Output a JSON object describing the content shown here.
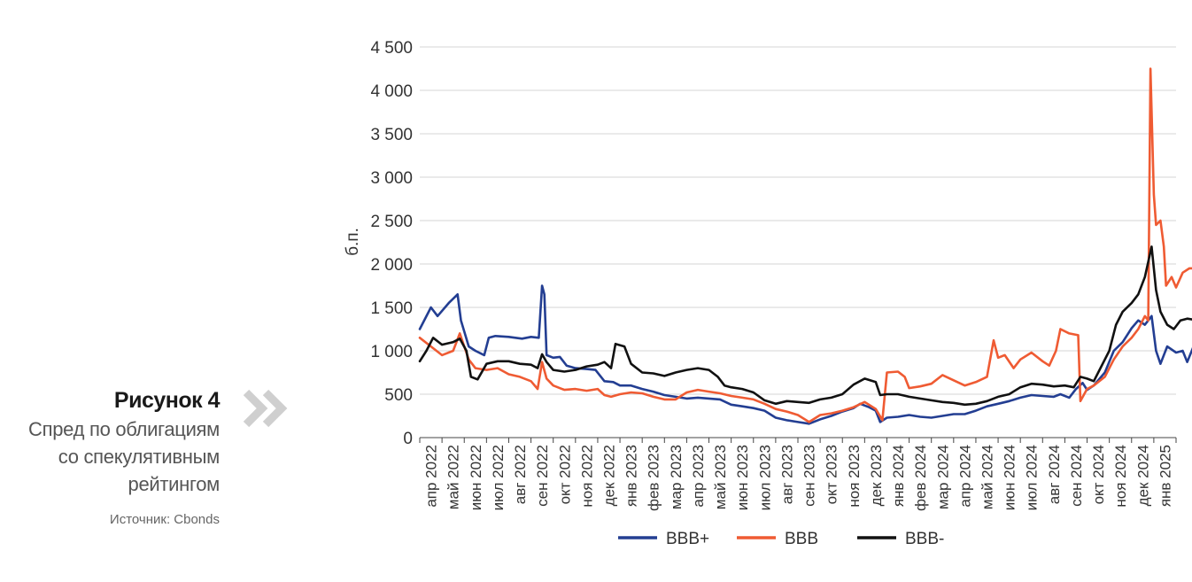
{
  "figure": {
    "number": "Рисунок 4",
    "title_lines": [
      "Спред по облигациям",
      "со спекулятивным",
      "рейтингом"
    ],
    "source": "Источник: Cbonds"
  },
  "chart_data": {
    "type": "line",
    "ylabel": "б.п.",
    "ylim": [
      0,
      4500
    ],
    "yticks": [
      0,
      500,
      1000,
      1500,
      2000,
      2500,
      3000,
      3500,
      4000,
      4500
    ],
    "ytick_labels": [
      "0",
      "500",
      "1 000",
      "1 500",
      "2 000",
      "2 500",
      "3 000",
      "3 500",
      "4 000",
      "4 500"
    ],
    "grid": "horizontal",
    "legend_position": "bottom",
    "categories": [
      "апр 2022",
      "май 2022",
      "июн 2022",
      "июл 2022",
      "авг 2022",
      "сен 2022",
      "окт 2022",
      "ноя 2022",
      "дек 2022",
      "янв 2023",
      "фев 2023",
      "мар 2023",
      "апр 2023",
      "май 2023",
      "июн 2023",
      "июл 2023",
      "авг 2023",
      "сен 2023",
      "окт 2023",
      "ноя 2023",
      "дек 2023",
      "янв 2024",
      "фев 2024",
      "мар 2024",
      "апр 2024",
      "май 2024",
      "июн 2024",
      "июл 2024",
      "авг 2024",
      "сен 2024",
      "окт 2024",
      "ноя 2024",
      "дек 2024",
      "янв 2025"
    ],
    "series": [
      {
        "name": "BBB+",
        "color": "#233e92",
        "points": [
          [
            0,
            1250
          ],
          [
            0.5,
            1500
          ],
          [
            0.8,
            1400
          ],
          [
            1.3,
            1550
          ],
          [
            1.7,
            1650
          ],
          [
            1.85,
            1350
          ],
          [
            2.2,
            1050
          ],
          [
            2.5,
            1000
          ],
          [
            2.9,
            950
          ],
          [
            3.1,
            1150
          ],
          [
            3.4,
            1170
          ],
          [
            4,
            1160
          ],
          [
            4.6,
            1140
          ],
          [
            5,
            1160
          ],
          [
            5.35,
            1150
          ],
          [
            5.5,
            1750
          ],
          [
            5.6,
            1650
          ],
          [
            5.7,
            950
          ],
          [
            6,
            920
          ],
          [
            6.3,
            930
          ],
          [
            6.6,
            830
          ],
          [
            7,
            800
          ],
          [
            7.5,
            790
          ],
          [
            7.9,
            780
          ],
          [
            8.3,
            650
          ],
          [
            8.7,
            640
          ],
          [
            9,
            600
          ],
          [
            9.5,
            600
          ],
          [
            10,
            560
          ],
          [
            10.5,
            530
          ],
          [
            11,
            490
          ],
          [
            11.5,
            470
          ],
          [
            12,
            450
          ],
          [
            12.5,
            460
          ],
          [
            13,
            450
          ],
          [
            13.5,
            440
          ],
          [
            14,
            380
          ],
          [
            14.5,
            360
          ],
          [
            15,
            340
          ],
          [
            15.5,
            310
          ],
          [
            16,
            230
          ],
          [
            16.5,
            200
          ],
          [
            17,
            180
          ],
          [
            17.5,
            160
          ],
          [
            18,
            210
          ],
          [
            18.5,
            250
          ],
          [
            19,
            300
          ],
          [
            19.5,
            340
          ],
          [
            19.8,
            390
          ],
          [
            20.2,
            350
          ],
          [
            20.5,
            310
          ],
          [
            20.7,
            180
          ],
          [
            21,
            230
          ],
          [
            21.5,
            240
          ],
          [
            22,
            260
          ],
          [
            22.5,
            240
          ],
          [
            23,
            230
          ],
          [
            23.5,
            250
          ],
          [
            24,
            270
          ],
          [
            24.5,
            270
          ],
          [
            25,
            310
          ],
          [
            25.5,
            360
          ],
          [
            26,
            390
          ],
          [
            26.5,
            420
          ],
          [
            27,
            460
          ],
          [
            27.5,
            490
          ],
          [
            28,
            480
          ],
          [
            28.5,
            470
          ],
          [
            28.8,
            500
          ],
          [
            29.2,
            460
          ],
          [
            29.5,
            560
          ],
          [
            29.8,
            630
          ],
          [
            30,
            550
          ],
          [
            30.3,
            600
          ],
          [
            30.8,
            750
          ],
          [
            31.2,
            1000
          ],
          [
            31.6,
            1100
          ],
          [
            32,
            1260
          ],
          [
            32.3,
            1350
          ],
          [
            32.6,
            1300
          ],
          [
            32.9,
            1400
          ],
          [
            33.1,
            1000
          ],
          [
            33.3,
            850
          ],
          [
            33.6,
            1050
          ],
          [
            34,
            980
          ],
          [
            34.3,
            1000
          ],
          [
            34.5,
            870
          ],
          [
            34.8,
            1060
          ],
          [
            35,
            1070
          ]
        ]
      },
      {
        "name": "BBB",
        "color": "#ef5b33",
        "points": [
          [
            0,
            1150
          ],
          [
            0.5,
            1050
          ],
          [
            1,
            950
          ],
          [
            1.5,
            1000
          ],
          [
            1.8,
            1200
          ],
          [
            2.2,
            900
          ],
          [
            2.5,
            800
          ],
          [
            3,
            780
          ],
          [
            3.5,
            800
          ],
          [
            4,
            730
          ],
          [
            4.5,
            700
          ],
          [
            5,
            650
          ],
          [
            5.3,
            560
          ],
          [
            5.5,
            870
          ],
          [
            5.7,
            680
          ],
          [
            6,
            600
          ],
          [
            6.5,
            550
          ],
          [
            7,
            560
          ],
          [
            7.5,
            540
          ],
          [
            8,
            560
          ],
          [
            8.3,
            490
          ],
          [
            8.6,
            470
          ],
          [
            9,
            500
          ],
          [
            9.5,
            520
          ],
          [
            10,
            510
          ],
          [
            10.5,
            470
          ],
          [
            11,
            440
          ],
          [
            11.5,
            440
          ],
          [
            12,
            520
          ],
          [
            12.5,
            550
          ],
          [
            13,
            530
          ],
          [
            13.5,
            510
          ],
          [
            14,
            480
          ],
          [
            14.5,
            460
          ],
          [
            15,
            440
          ],
          [
            15.5,
            390
          ],
          [
            16,
            330
          ],
          [
            16.5,
            300
          ],
          [
            17,
            260
          ],
          [
            17.5,
            180
          ],
          [
            18,
            260
          ],
          [
            18.5,
            280
          ],
          [
            19,
            310
          ],
          [
            19.5,
            350
          ],
          [
            20,
            410
          ],
          [
            20.5,
            330
          ],
          [
            20.8,
            200
          ],
          [
            21,
            750
          ],
          [
            21.5,
            760
          ],
          [
            21.8,
            700
          ],
          [
            22,
            570
          ],
          [
            22.5,
            590
          ],
          [
            23,
            620
          ],
          [
            23.5,
            720
          ],
          [
            24,
            660
          ],
          [
            24.5,
            600
          ],
          [
            25,
            640
          ],
          [
            25.5,
            700
          ],
          [
            25.8,
            1120
          ],
          [
            26,
            920
          ],
          [
            26.3,
            950
          ],
          [
            26.7,
            800
          ],
          [
            27,
            900
          ],
          [
            27.5,
            980
          ],
          [
            28,
            880
          ],
          [
            28.3,
            830
          ],
          [
            28.6,
            1000
          ],
          [
            28.8,
            1250
          ],
          [
            29.2,
            1200
          ],
          [
            29.6,
            1180
          ],
          [
            29.7,
            420
          ],
          [
            30,
            560
          ],
          [
            30.3,
            600
          ],
          [
            30.8,
            700
          ],
          [
            31.2,
            900
          ],
          [
            31.6,
            1050
          ],
          [
            32,
            1150
          ],
          [
            32.3,
            1250
          ],
          [
            32.6,
            1400
          ],
          [
            32.75,
            1350
          ],
          [
            32.85,
            4250
          ],
          [
            33,
            2800
          ],
          [
            33.1,
            2450
          ],
          [
            33.3,
            2500
          ],
          [
            33.45,
            2200
          ],
          [
            33.55,
            1750
          ],
          [
            33.8,
            1850
          ],
          [
            34,
            1730
          ],
          [
            34.3,
            1900
          ],
          [
            34.6,
            1950
          ],
          [
            35,
            1950
          ]
        ]
      },
      {
        "name": "BBB-",
        "color": "#111111",
        "points": [
          [
            0,
            880
          ],
          [
            0.3,
            1000
          ],
          [
            0.6,
            1150
          ],
          [
            1,
            1070
          ],
          [
            1.5,
            1100
          ],
          [
            1.8,
            1140
          ],
          [
            2.1,
            1000
          ],
          [
            2.3,
            700
          ],
          [
            2.6,
            670
          ],
          [
            3,
            850
          ],
          [
            3.5,
            880
          ],
          [
            4,
            880
          ],
          [
            4.5,
            850
          ],
          [
            5,
            840
          ],
          [
            5.3,
            800
          ],
          [
            5.5,
            960
          ],
          [
            5.7,
            870
          ],
          [
            6,
            780
          ],
          [
            6.5,
            760
          ],
          [
            7,
            780
          ],
          [
            7.5,
            820
          ],
          [
            8,
            840
          ],
          [
            8.3,
            870
          ],
          [
            8.6,
            800
          ],
          [
            8.8,
            1080
          ],
          [
            9.2,
            1050
          ],
          [
            9.5,
            850
          ],
          [
            10,
            750
          ],
          [
            10.5,
            740
          ],
          [
            11,
            710
          ],
          [
            11.5,
            750
          ],
          [
            12,
            780
          ],
          [
            12.5,
            800
          ],
          [
            13,
            780
          ],
          [
            13.4,
            700
          ],
          [
            13.7,
            600
          ],
          [
            14,
            580
          ],
          [
            14.5,
            560
          ],
          [
            15,
            520
          ],
          [
            15.5,
            430
          ],
          [
            16,
            390
          ],
          [
            16.5,
            420
          ],
          [
            17,
            410
          ],
          [
            17.5,
            400
          ],
          [
            18,
            440
          ],
          [
            18.5,
            460
          ],
          [
            19,
            500
          ],
          [
            19.5,
            610
          ],
          [
            20,
            680
          ],
          [
            20.5,
            640
          ],
          [
            20.7,
            490
          ],
          [
            21,
            500
          ],
          [
            21.5,
            500
          ],
          [
            22,
            470
          ],
          [
            22.5,
            450
          ],
          [
            23,
            430
          ],
          [
            23.5,
            410
          ],
          [
            24,
            400
          ],
          [
            24.5,
            380
          ],
          [
            25,
            390
          ],
          [
            25.5,
            420
          ],
          [
            26,
            470
          ],
          [
            26.5,
            500
          ],
          [
            27,
            580
          ],
          [
            27.5,
            620
          ],
          [
            28,
            610
          ],
          [
            28.5,
            590
          ],
          [
            29,
            600
          ],
          [
            29.4,
            580
          ],
          [
            29.7,
            700
          ],
          [
            30,
            680
          ],
          [
            30.3,
            650
          ],
          [
            30.6,
            800
          ],
          [
            31,
            1000
          ],
          [
            31.3,
            1300
          ],
          [
            31.6,
            1450
          ],
          [
            32,
            1550
          ],
          [
            32.3,
            1650
          ],
          [
            32.6,
            1850
          ],
          [
            32.9,
            2200
          ],
          [
            33.1,
            1700
          ],
          [
            33.3,
            1450
          ],
          [
            33.6,
            1300
          ],
          [
            33.9,
            1250
          ],
          [
            34.2,
            1350
          ],
          [
            34.5,
            1370
          ],
          [
            35,
            1350
          ]
        ]
      }
    ]
  }
}
